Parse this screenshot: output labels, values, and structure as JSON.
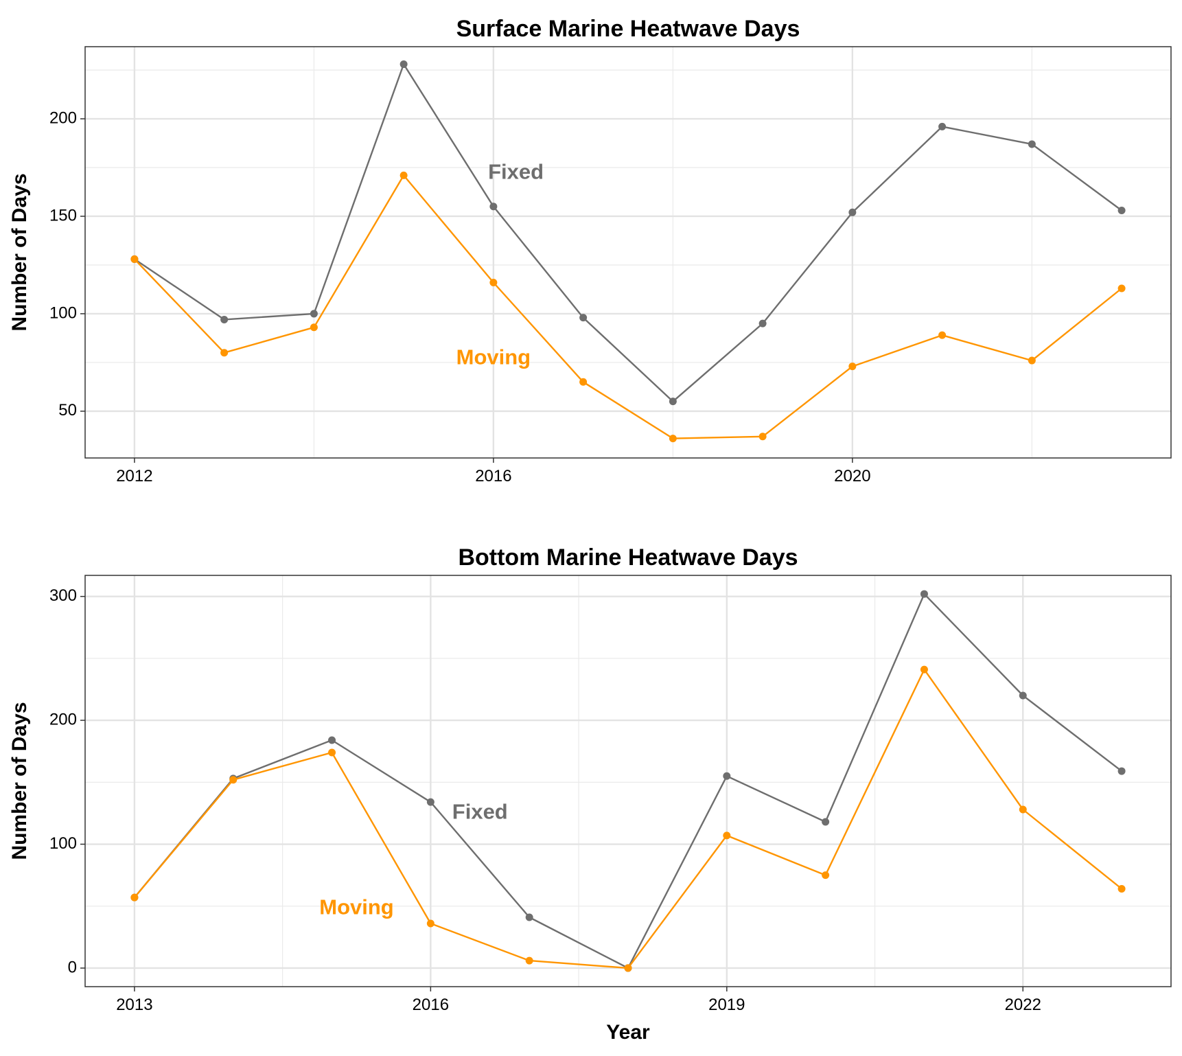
{
  "chart_data": [
    {
      "type": "line",
      "title": "Surface Marine Heatwave Days",
      "xlabel": "",
      "ylabel": "Number of Days",
      "x": [
        2012,
        2013,
        2014,
        2015,
        2016,
        2017,
        2018,
        2019,
        2020,
        2021,
        2022,
        2023
      ],
      "xlim": [
        2011.45,
        2023.55
      ],
      "ylim": [
        26,
        237
      ],
      "xticks": [
        2012,
        2016,
        2020
      ],
      "xtick_labels": [
        "2012",
        "2016",
        "2020"
      ],
      "yticks": [
        50,
        100,
        150,
        200
      ],
      "ytick_labels": [
        "50",
        "100",
        "150",
        "200"
      ],
      "grid": true,
      "legend": "none",
      "series": [
        {
          "name": "Fixed",
          "color": "#6e6e6e",
          "values": [
            128,
            97,
            100,
            228,
            155,
            98,
            55,
            95,
            152,
            196,
            187,
            153
          ],
          "label_pos": [
            2016.25,
            172
          ]
        },
        {
          "name": "Moving",
          "color": "#ff9500",
          "values": [
            128,
            80,
            93,
            171,
            116,
            65,
            36,
            37,
            73,
            89,
            76,
            113
          ],
          "label_pos": [
            2016.0,
            77
          ]
        }
      ]
    },
    {
      "type": "line",
      "title": "Bottom Marine Heatwave Days",
      "xlabel": "Year",
      "ylabel": "Number of Days",
      "x": [
        2013,
        2014,
        2015,
        2016,
        2017,
        2018,
        2019,
        2020,
        2021,
        2022,
        2023
      ],
      "xlim": [
        2012.5,
        2023.5
      ],
      "ylim": [
        -15,
        317
      ],
      "xticks": [
        2013,
        2016,
        2019,
        2022
      ],
      "xtick_labels": [
        "2013",
        "2016",
        "2019",
        "2022"
      ],
      "yticks": [
        0,
        100,
        200,
        300
      ],
      "ytick_labels": [
        "0",
        "100",
        "200",
        "300"
      ],
      "grid": true,
      "legend": "none",
      "series": [
        {
          "name": "Fixed",
          "color": "#6e6e6e",
          "values": [
            57,
            153,
            184,
            134,
            41,
            0,
            155,
            118,
            302,
            220,
            159
          ],
          "label_pos": [
            2016.5,
            125
          ]
        },
        {
          "name": "Moving",
          "color": "#ff9500",
          "values": [
            57,
            152,
            174,
            36,
            6,
            0,
            107,
            75,
            241,
            128,
            64
          ],
          "label_pos": [
            2015.25,
            48
          ]
        }
      ]
    }
  ]
}
